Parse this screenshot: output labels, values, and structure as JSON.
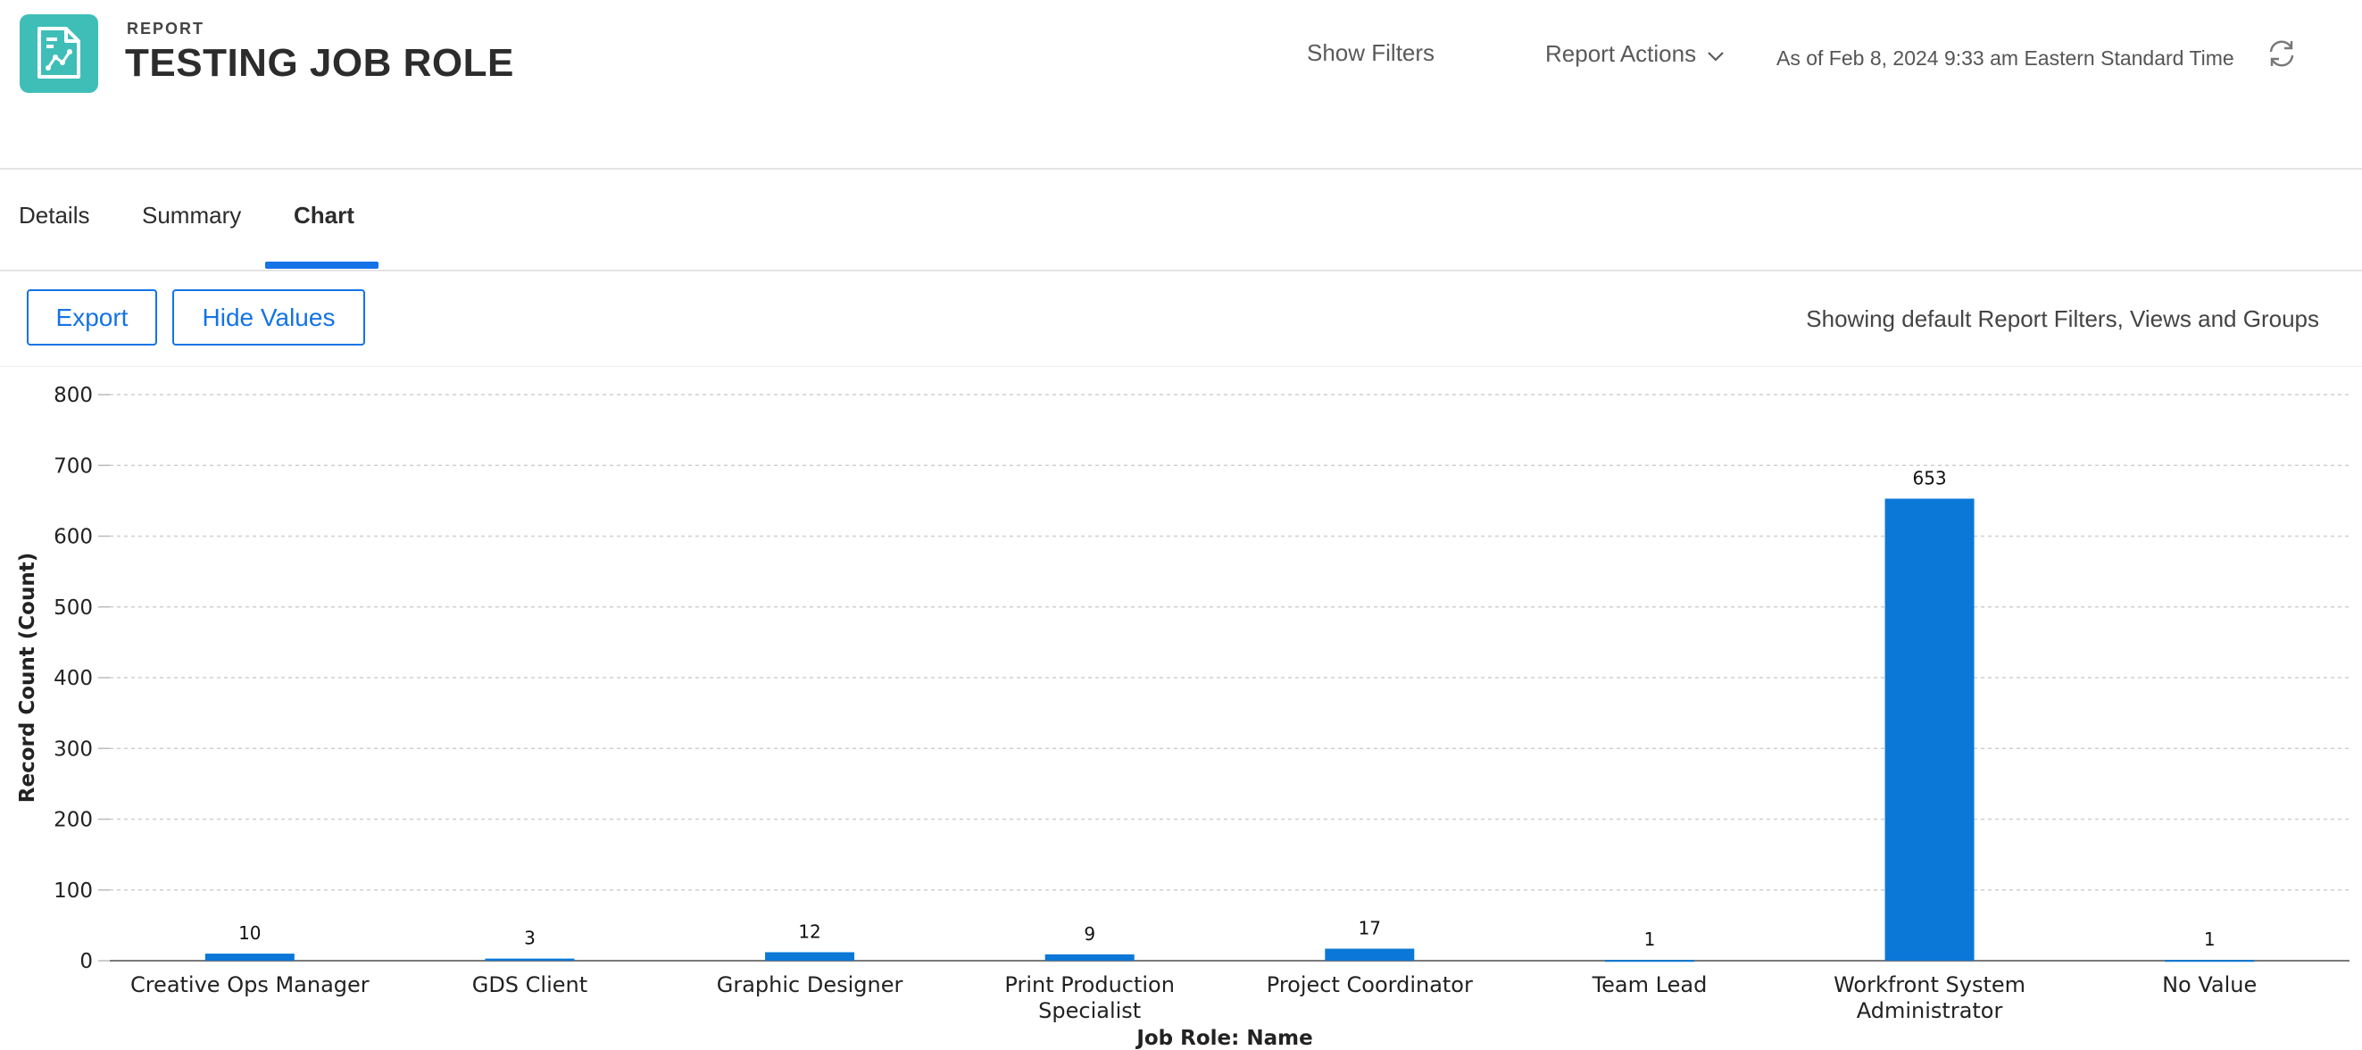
{
  "header": {
    "eyebrow": "REPORT",
    "title": "TESTING JOB ROLE",
    "show_filters": "Show Filters",
    "report_actions": "Report Actions",
    "as_of": "As of Feb 8, 2024 9:33 am Eastern Standard Time",
    "icons": {
      "app": "report-chart-icon",
      "actions": "chevron-down-icon",
      "refresh": "refresh-icon"
    }
  },
  "tabs": [
    {
      "label": "Details",
      "active": false
    },
    {
      "label": "Summary",
      "active": false
    },
    {
      "label": "Chart",
      "active": true
    }
  ],
  "toolbar": {
    "export_label": "Export",
    "hide_values_label": "Hide Values",
    "showing_text": "Showing default Report Filters, Views and Groups"
  },
  "colors": {
    "accent": "#1473e6",
    "bar": "#0b78d7",
    "app_icon": "#3fbeb7"
  },
  "chart_data": {
    "type": "bar",
    "categories": [
      "Creative Ops Manager",
      "GDS Client",
      "Graphic Designer",
      "Print Production Specialist",
      "Project Coordinator",
      "Team Lead",
      "Workfront System Administrator",
      "No Value"
    ],
    "values": [
      10,
      3,
      12,
      9,
      17,
      1,
      653,
      1
    ],
    "xlabel": "Job Role: Name",
    "ylabel": "Record Count (Count)",
    "ylim": [
      0,
      800
    ],
    "yticks": [
      0,
      100,
      200,
      300,
      400,
      500,
      600,
      700,
      800
    ],
    "grid": true,
    "data_labels": true
  }
}
